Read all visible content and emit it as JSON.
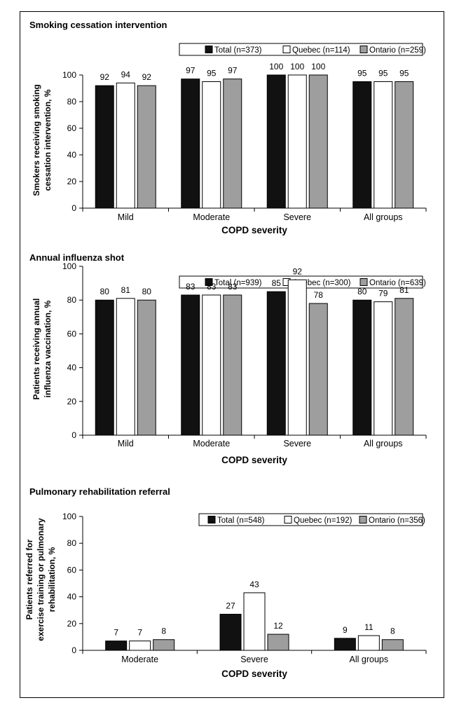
{
  "colors": {
    "total": "#111111",
    "quebec": "#ffffff",
    "ontario": "#9e9e9e",
    "stroke": "#000000"
  },
  "chart_data": [
    {
      "type": "bar",
      "title": "Smoking cessation intervention",
      "xlabel": "COPD severity",
      "ylabel": [
        "Smokers receiving smoking",
        "cessation intervention, %"
      ],
      "ylim": [
        0,
        100
      ],
      "yticks": [
        0,
        20,
        40,
        60,
        80,
        100
      ],
      "categories": [
        "Mild",
        "Moderate",
        "Severe",
        "All groups"
      ],
      "series": [
        {
          "name": "Total (n=373)",
          "values": [
            92,
            97,
            100,
            95
          ]
        },
        {
          "name": "Quebec (n=114)",
          "values": [
            94,
            95,
            100,
            95
          ]
        },
        {
          "name": "Ontario (n=259)",
          "values": [
            92,
            97,
            100,
            95
          ]
        }
      ]
    },
    {
      "type": "bar",
      "title": "Annual influenza shot",
      "xlabel": "COPD severity",
      "ylabel": [
        "Patients receiving annual",
        "influenza vaccination, %"
      ],
      "ylim": [
        0,
        100
      ],
      "yticks": [
        0,
        20,
        40,
        60,
        80,
        100
      ],
      "categories": [
        "Mild",
        "Moderate",
        "Severe",
        "All groups"
      ],
      "series": [
        {
          "name": "Total (n=939)",
          "values": [
            80,
            83,
            85,
            80
          ]
        },
        {
          "name": "Quebec (n=300)",
          "values": [
            81,
            83,
            92,
            79
          ]
        },
        {
          "name": "Ontario (n=639)",
          "values": [
            80,
            83,
            78,
            81
          ]
        }
      ]
    },
    {
      "type": "bar",
      "title": "Pulmonary rehabilitation referral",
      "xlabel": "COPD severity",
      "ylabel": [
        "Patients referred for",
        "exercise training or pulmonary",
        "rehabilitation, %"
      ],
      "ylim": [
        0,
        100
      ],
      "yticks": [
        0,
        20,
        40,
        60,
        80,
        100
      ],
      "categories": [
        "Moderate",
        "Severe",
        "All groups"
      ],
      "series": [
        {
          "name": "Total (n=548)",
          "values": [
            7,
            27,
            9
          ]
        },
        {
          "name": "Quebec (n=192)",
          "values": [
            7,
            43,
            11
          ]
        },
        {
          "name": "Ontario (n=356)",
          "values": [
            8,
            12,
            8
          ]
        }
      ]
    }
  ]
}
